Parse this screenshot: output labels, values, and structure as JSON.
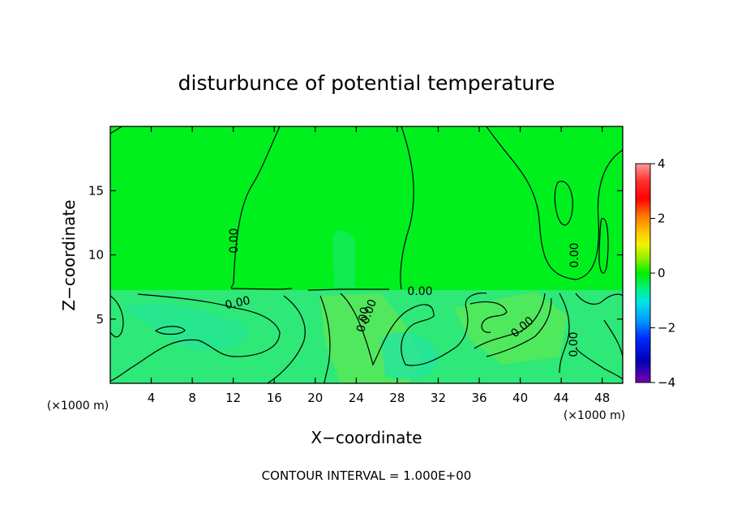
{
  "chart_data": {
    "type": "heatmap",
    "title": "disturbunce of potential temperature",
    "xlabel": "X−coordinate",
    "ylabel": "Z−coordinate",
    "x_unit": "(×1000 m)",
    "z_unit": "(×1000 m)",
    "xlim": [
      0,
      50
    ],
    "ylim": [
      0,
      20
    ],
    "x_ticks": [
      4,
      8,
      12,
      16,
      20,
      24,
      28,
      32,
      36,
      40,
      44,
      48
    ],
    "y_ticks": [
      5,
      10,
      15
    ],
    "colorbar": {
      "min": -4,
      "max": 4,
      "ticks": [
        "4",
        "2",
        "0",
        "−2",
        "−4"
      ],
      "colors": [
        "#ff9a9a",
        "#ff3030",
        "#ff0000",
        "#ff7a00",
        "#ffc400",
        "#f2f200",
        "#96f000",
        "#00f000",
        "#00f080",
        "#00e6e6",
        "#0096ff",
        "#0028ff",
        "#0000b4",
        "#7800b4"
      ]
    },
    "contour_labels": [
      "0.00",
      "0.00",
      "0.00",
      "0.00",
      "0.00",
      "0.00",
      "0.00",
      "0.00"
    ],
    "contour_interval": "CONTOUR INTERVAL = 1.000E+00",
    "colors": {
      "upper_field": "#00f01e",
      "lower_field": "#2ee878",
      "lower_patch": "#58e858",
      "cool_patch": "#22e6a0"
    }
  }
}
